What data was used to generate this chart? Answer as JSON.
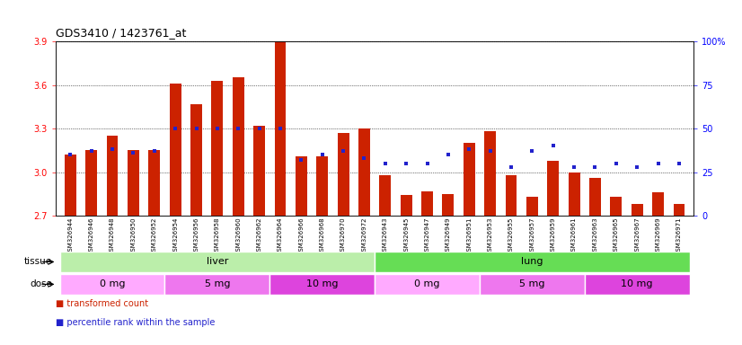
{
  "title": "GDS3410 / 1423761_at",
  "samples": [
    "GSM326944",
    "GSM326946",
    "GSM326948",
    "GSM326950",
    "GSM326952",
    "GSM326954",
    "GSM326956",
    "GSM326958",
    "GSM326960",
    "GSM326962",
    "GSM326964",
    "GSM326966",
    "GSM326968",
    "GSM326970",
    "GSM326972",
    "GSM326943",
    "GSM326945",
    "GSM326947",
    "GSM326949",
    "GSM326951",
    "GSM326953",
    "GSM326955",
    "GSM326957",
    "GSM326959",
    "GSM326961",
    "GSM326963",
    "GSM326965",
    "GSM326967",
    "GSM326969",
    "GSM326971"
  ],
  "transformed_count": [
    3.12,
    3.15,
    3.25,
    3.15,
    3.15,
    3.61,
    3.47,
    3.63,
    3.65,
    3.32,
    3.9,
    3.11,
    3.11,
    3.27,
    3.3,
    2.98,
    2.84,
    2.87,
    2.85,
    3.2,
    3.28,
    2.98,
    2.83,
    3.08,
    3.0,
    2.96,
    2.83,
    2.78,
    2.86,
    2.78
  ],
  "percentile_rank": [
    35,
    37,
    38,
    36,
    37,
    50,
    50,
    50,
    50,
    50,
    50,
    32,
    35,
    37,
    33,
    30,
    30,
    30,
    35,
    38,
    37,
    28,
    37,
    40,
    28,
    28,
    30,
    28,
    30,
    30
  ],
  "ylim_left": [
    2.7,
    3.9
  ],
  "ylim_right": [
    0,
    100
  ],
  "yticks_left": [
    2.7,
    3.0,
    3.3,
    3.6,
    3.9
  ],
  "yticks_right": [
    0,
    25,
    50,
    75,
    100
  ],
  "bar_color": "#cc2200",
  "dot_color": "#2222cc",
  "tissue_groups": [
    {
      "label": "liver",
      "start": 0,
      "end": 14,
      "color": "#bbeeaa"
    },
    {
      "label": "lung",
      "start": 15,
      "end": 29,
      "color": "#66dd55"
    }
  ],
  "dose_groups": [
    {
      "label": "0 mg",
      "start": 0,
      "end": 4,
      "color": "#ffaaff"
    },
    {
      "label": "5 mg",
      "start": 5,
      "end": 9,
      "color": "#ee77ee"
    },
    {
      "label": "10 mg",
      "start": 10,
      "end": 14,
      "color": "#dd44dd"
    },
    {
      "label": "0 mg",
      "start": 15,
      "end": 19,
      "color": "#ffaaff"
    },
    {
      "label": "5 mg",
      "start": 20,
      "end": 24,
      "color": "#ee77ee"
    },
    {
      "label": "10 mg",
      "start": 25,
      "end": 29,
      "color": "#dd44dd"
    }
  ],
  "plot_bg": "#ffffff",
  "xtick_bg": "#dddddd",
  "bar_color_legend": "#cc2200",
  "dot_color_legend": "#2222cc"
}
